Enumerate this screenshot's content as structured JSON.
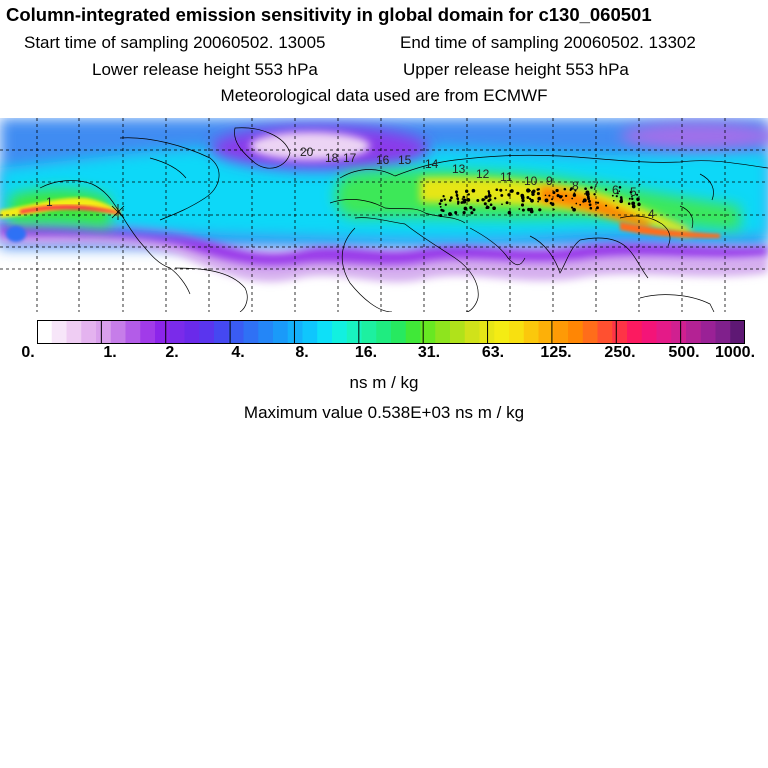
{
  "header": {
    "title": "Column-integrated emission sensitivity in global domain for c130_060501",
    "start_time": "Start time of sampling 20060502. 13005",
    "end_time": "End time of sampling 20060502. 13302",
    "lower_height": "Lower release height  553 hPa",
    "upper_height": "Upper release height  553 hPa",
    "met_data": "Meteorological data used are from ECMWF"
  },
  "map": {
    "trajectory_labels": [
      "1",
      "20",
      "18",
      "17",
      "16",
      "15",
      "14",
      "13",
      "12",
      "11",
      "10",
      "9",
      "8",
      "7",
      "6",
      "5",
      "4"
    ]
  },
  "colorbar": {
    "ticks": [
      "0.",
      "1.",
      "2.",
      "4.",
      "8.",
      "16.",
      "31.",
      "63.",
      "125.",
      "250.",
      "500.",
      "1000."
    ],
    "units": "ns m / kg",
    "colors": [
      "#ffffff",
      "#f7e6f9",
      "#efcdf3",
      "#e4b3ef",
      "#d9a0ec",
      "#c67de9",
      "#b35ce8",
      "#a13be9",
      "#8c25ea",
      "#7a2bea",
      "#6a2aea",
      "#5a35ee",
      "#4548f1",
      "#3a5cf3",
      "#2f71f5",
      "#2486f7",
      "#1a9af9",
      "#14b0fb",
      "#0fc6fd",
      "#0ee0f8",
      "#12f0e0",
      "#18f3c0",
      "#1df0a0",
      "#1fec80",
      "#27e960",
      "#40e838",
      "#68e822",
      "#8ee41e",
      "#b0e21a",
      "#d0e21a",
      "#e6e617",
      "#f4ec14",
      "#f8e010",
      "#fbc80c",
      "#fdb008",
      "#fe9a06",
      "#ff8604",
      "#ff6d1a",
      "#ff5030",
      "#fe3446",
      "#fc1a60",
      "#f41478",
      "#e41a88",
      "#d02090",
      "#b42294",
      "#9a2196",
      "#80208c",
      "#5e1874"
    ],
    "max_value": "Maximum value  0.538E+03 ns m / kg"
  }
}
